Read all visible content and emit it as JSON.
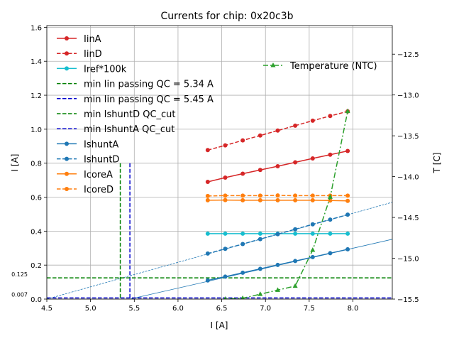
{
  "chart_data": {
    "type": "line",
    "title": "Currents for chip: 0x20c3b",
    "xlabel": "I [A]",
    "ylabel": "I [A]",
    "y2label": "T [C]",
    "xlim": [
      4.5,
      8.45
    ],
    "ylim": [
      0,
      1.61
    ],
    "y2lim": [
      -15.5,
      -12.15
    ],
    "grid": true,
    "x_ticks": [
      4.5,
      5.0,
      5.5,
      6.0,
      6.5,
      7.0,
      7.5,
      8.0
    ],
    "x_tick_labels": [
      "4.5",
      "5.0",
      "5.5",
      "6.0",
      "6.5",
      "7.0",
      "7.5",
      "8.0"
    ],
    "y_ticks": [
      0.0,
      0.2,
      0.4,
      0.6,
      0.8,
      1.0,
      1.2,
      1.4,
      1.6
    ],
    "y_tick_labels": [
      "0.0",
      "0.2",
      "0.4",
      "0.6",
      "0.8",
      "1.0",
      "1.2",
      "1.4",
      "1.6"
    ],
    "y2_ticks": [
      -15.5,
      -15.0,
      -14.5,
      -14.0,
      -13.5,
      -13.0,
      -12.5
    ],
    "y2_tick_labels": [
      "−15.5",
      "−15.0",
      "−14.5",
      "−14.0",
      "−13.5",
      "−13.0",
      "−12.5"
    ],
    "extra_y_labels": [
      {
        "value": 0.125,
        "text": "0.125"
      },
      {
        "value": 0.007,
        "text": "0.007"
      }
    ],
    "x": [
      6.34,
      6.54,
      6.74,
      6.94,
      7.14,
      7.34,
      7.54,
      7.74,
      7.94
    ],
    "series": [
      {
        "name": "IinA",
        "color": "#d62728",
        "dash": "solid",
        "marker": "circle",
        "values": [
          0.69,
          0.715,
          0.738,
          0.76,
          0.782,
          0.805,
          0.828,
          0.85,
          0.872
        ]
      },
      {
        "name": "IinD",
        "color": "#d62728",
        "dash": "dashed",
        "marker": "circle",
        "values": [
          0.877,
          0.905,
          0.934,
          0.963,
          0.992,
          1.021,
          1.05,
          1.078,
          1.105
        ]
      },
      {
        "name": "Iref*100k",
        "color": "#17becf",
        "dash": "solid",
        "marker": "circle",
        "values": [
          0.385,
          0.385,
          0.385,
          0.385,
          0.385,
          0.385,
          0.385,
          0.385,
          0.385
        ]
      },
      {
        "name": "min Iin passing QC = 5.34 A",
        "color": "#008000",
        "dash": "dashed",
        "marker": "none",
        "kind": "vline",
        "value": 5.34
      },
      {
        "name": "min Iin passing QC = 5.45 A",
        "color": "#0000cd",
        "dash": "dashed",
        "marker": "none",
        "kind": "vline",
        "value": 5.45
      },
      {
        "name": "min IshuntD QC_cut",
        "color": "#008000",
        "dash": "dashed",
        "marker": "none",
        "kind": "hline",
        "value": 0.125
      },
      {
        "name": "min IshuntA QC_cut",
        "color": "#0000cd",
        "dash": "dashed",
        "marker": "none",
        "kind": "hline",
        "value": 0.007
      },
      {
        "name": "IshuntA",
        "color": "#1f77b4",
        "dash": "solid",
        "marker": "circle",
        "values": [
          0.11,
          0.132,
          0.155,
          0.178,
          0.201,
          0.224,
          0.247,
          0.27,
          0.293
        ]
      },
      {
        "name": "IshuntD",
        "color": "#1f77b4",
        "dash": "dashed",
        "marker": "circle",
        "values": [
          0.268,
          0.296,
          0.324,
          0.353,
          0.382,
          0.411,
          0.44,
          0.468,
          0.497
        ]
      },
      {
        "name": "IcoreA",
        "color": "#ff7f0e",
        "dash": "solid",
        "marker": "circle",
        "values": [
          0.582,
          0.583,
          0.582,
          0.582,
          0.582,
          0.582,
          0.582,
          0.58,
          0.578
        ]
      },
      {
        "name": "IcoreD",
        "color": "#ff7f0e",
        "dash": "dashed",
        "marker": "circle",
        "values": [
          0.607,
          0.609,
          0.609,
          0.609,
          0.61,
          0.609,
          0.609,
          0.609,
          0.609
        ]
      }
    ],
    "fit_lines": [
      {
        "color": "#1f77b4",
        "dash": "solid",
        "x": [
          5.45,
          8.45
        ],
        "y": [
          0.0,
          0.352
        ]
      },
      {
        "color": "#1f77b4",
        "dash": "dashed",
        "x": [
          4.5,
          8.45
        ],
        "y": [
          0.0,
          0.57
        ]
      }
    ],
    "temperature": {
      "name": "Temperature (NTC)",
      "color": "#2ca02c",
      "dash": "dashdot",
      "marker": "triangle",
      "x": [
        6.54,
        6.74,
        6.94,
        7.14,
        7.34,
        7.54,
        7.74,
        7.94
      ],
      "values": [
        -15.5,
        -15.49,
        -15.44,
        -15.39,
        -15.34,
        -14.9,
        -14.25,
        -13.2
      ],
      "curve_x": [
        6.34,
        6.54,
        6.74,
        6.94,
        7.14,
        7.34,
        7.54,
        7.74,
        7.94
      ],
      "curve_values": [
        -15.53,
        -15.5,
        -15.49,
        -15.44,
        -15.39,
        -15.34,
        -14.9,
        -14.25,
        -13.2
      ]
    },
    "legend_position": "upper-left"
  }
}
